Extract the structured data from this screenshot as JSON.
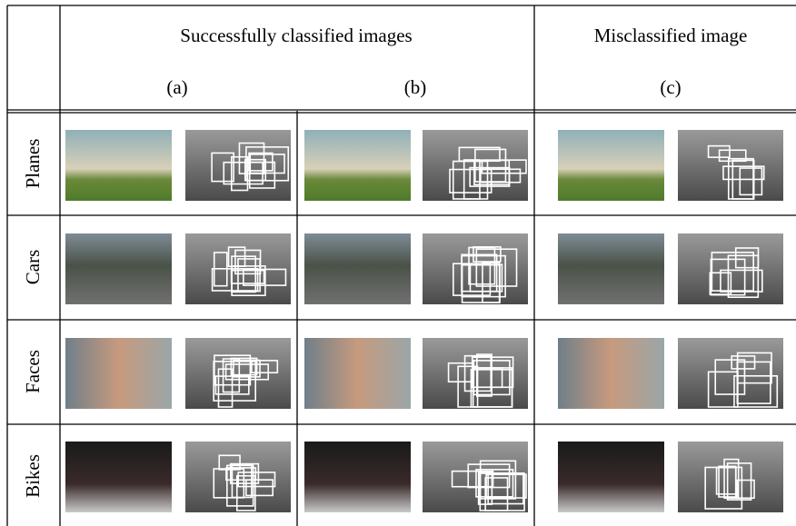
{
  "header": {
    "group_success": "Successfully classified images",
    "group_miss": "Misclassified image",
    "col_a": "(a)",
    "col_b": "(b)",
    "col_c": "(c)"
  },
  "rows": [
    "Planes",
    "Cars",
    "Faces",
    "Bikes"
  ]
}
